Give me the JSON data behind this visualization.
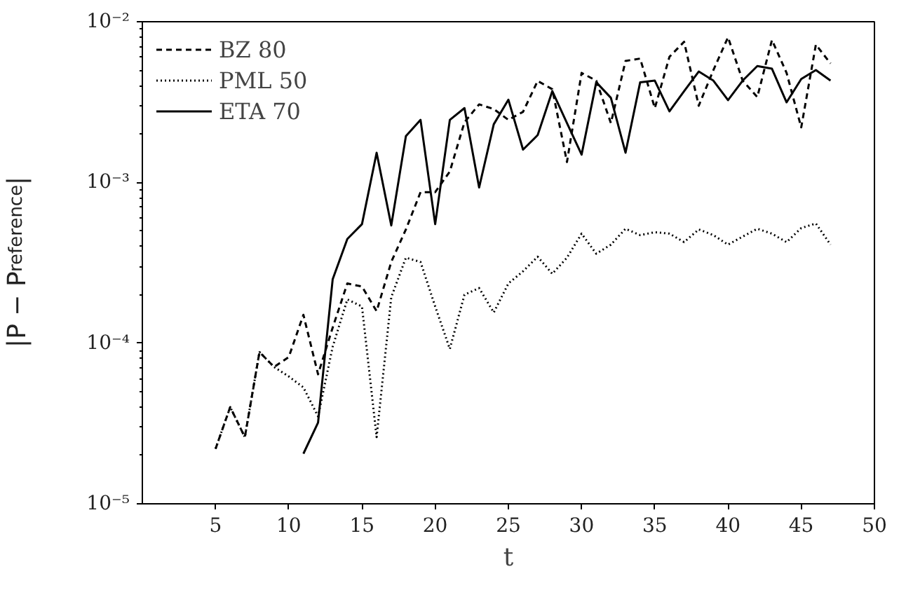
{
  "chart_data": {
    "type": "line",
    "xlabel": "t",
    "ylabel": "|P − P$_{reference}$|",
    "log": "y",
    "legend": "top left",
    "xlim": [
      0,
      50
    ],
    "xticks": [
      5,
      10,
      15,
      20,
      25,
      30,
      35,
      40,
      45,
      50
    ],
    "ylim": [
      1e-05,
      0.01
    ],
    "yticks": [
      {
        "value": 1e-05,
        "label": "10⁻⁵"
      },
      {
        "value": 0.0001,
        "label": "10⁻⁴"
      },
      {
        "value": 0.001,
        "label": "10⁻³"
      },
      {
        "value": 0.01,
        "label": "10⁻²"
      }
    ],
    "x": [
      5,
      6,
      7,
      8,
      9,
      10,
      11,
      12,
      13,
      14,
      15,
      16,
      17,
      18,
      19,
      20,
      21,
      22,
      23,
      24,
      25,
      26,
      27,
      28,
      29,
      30,
      31,
      32,
      33,
      34,
      35,
      36,
      37,
      38,
      39,
      40,
      41,
      42,
      43,
      44,
      45,
      46,
      47
    ],
    "series": [
      {
        "name": "BZ 80",
        "color": "#000000",
        "line_style": "dashed",
        "values": [
          2.2e-05,
          4e-05,
          2.6e-05,
          8.8e-05,
          7.1e-05,
          8.2e-05,
          0.00015,
          6.4e-05,
          0.000125,
          0.000235,
          0.000225,
          0.000158,
          0.00032,
          0.00051,
          0.00087,
          0.00087,
          0.00117,
          0.00237,
          0.00306,
          0.00286,
          0.00245,
          0.00275,
          0.00428,
          0.0038,
          0.00134,
          0.0048,
          0.0043,
          0.00234,
          0.0057,
          0.0059,
          0.0029,
          0.00605,
          0.0075,
          0.003,
          0.005,
          0.008,
          0.0043,
          0.0034,
          0.0077,
          0.0048,
          0.0022,
          0.0072,
          0.0055
        ]
      },
      {
        "name": "PML 50",
        "color": "#000000",
        "line_style": "dotted",
        "values": [
          2.2e-05,
          4e-05,
          2.6e-05,
          8.8e-05,
          7.1e-05,
          6.2e-05,
          5.3e-05,
          3.5e-05,
          9.5e-05,
          0.000187,
          0.000169,
          2.6e-05,
          0.000193,
          0.00034,
          0.00032,
          0.000169,
          9.2e-05,
          0.0002,
          0.00022,
          0.000155,
          0.000235,
          0.00028,
          0.000345,
          0.00027,
          0.00034,
          0.00048,
          0.00036,
          0.00041,
          0.000515,
          0.00047,
          0.00049,
          0.00048,
          0.000425,
          0.00051,
          0.00047,
          0.00041,
          0.00046,
          0.000515,
          0.00048,
          0.000425,
          0.00052,
          0.000555,
          0.00041
        ]
      },
      {
        "name": "ETA 70",
        "color": "#000000",
        "line_style": "solid",
        "values": [
          null,
          null,
          null,
          null,
          null,
          null,
          2.05e-05,
          3.2e-05,
          0.00025,
          0.000445,
          0.00055,
          0.00153,
          0.00054,
          0.00194,
          0.00245,
          0.00055,
          0.00245,
          0.0029,
          0.00093,
          0.0023,
          0.00327,
          0.0016,
          0.00197,
          0.0037,
          0.00234,
          0.00149,
          0.0042,
          0.00336,
          0.00153,
          0.0042,
          0.0043,
          0.00277,
          0.0037,
          0.0049,
          0.0043,
          0.00325,
          0.0043,
          0.0053,
          0.0051,
          0.00315,
          0.0044,
          0.005,
          0.0043
        ]
      }
    ]
  }
}
